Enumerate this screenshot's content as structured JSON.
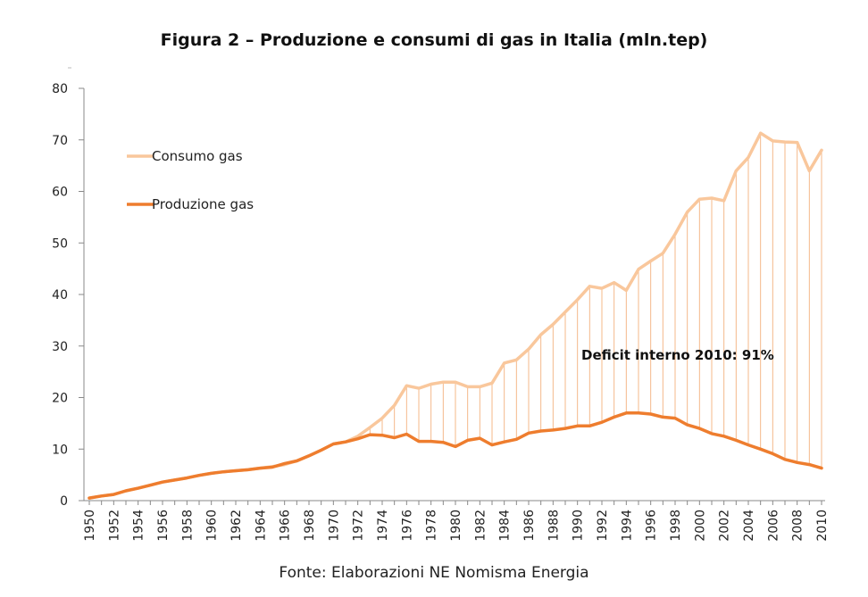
{
  "chart_data": {
    "type": "line",
    "title": "Figura 2 – Produzione e consumi di gas in Italia (mln.tep)",
    "xlabel": "",
    "ylabel": "",
    "ylim": [
      0,
      80
    ],
    "yticks": [
      0,
      10,
      20,
      30,
      40,
      50,
      60,
      70,
      80
    ],
    "x": [
      1950,
      1951,
      1952,
      1953,
      1954,
      1955,
      1956,
      1957,
      1958,
      1959,
      1960,
      1961,
      1962,
      1963,
      1964,
      1965,
      1966,
      1967,
      1968,
      1969,
      1970,
      1971,
      1972,
      1973,
      1974,
      1975,
      1976,
      1977,
      1978,
      1979,
      1980,
      1981,
      1982,
      1983,
      1984,
      1985,
      1986,
      1987,
      1988,
      1989,
      1990,
      1991,
      1992,
      1993,
      1994,
      1995,
      1996,
      1997,
      1998,
      1999,
      2000,
      2001,
      2002,
      2003,
      2004,
      2005,
      2006,
      2007,
      2008,
      2009,
      2010
    ],
    "xtick_labels": [
      "1950",
      "1952",
      "1954",
      "1956",
      "1958",
      "1960",
      "1962",
      "1964",
      "1966",
      "1968",
      "1970",
      "1972",
      "1974",
      "1976",
      "1978",
      "1980",
      "1982",
      "1984",
      "1986",
      "1988",
      "1990",
      "1992",
      "1994",
      "1996",
      "1998",
      "2000",
      "2002",
      "2004",
      "2006",
      "2008",
      "2010"
    ],
    "grid": false,
    "legend_placement": "top-left",
    "series": [
      {
        "name": "Consumo gas",
        "color": "#f9c79c",
        "values": [
          0.5,
          0.9,
          1.2,
          1.9,
          2.4,
          3.0,
          3.6,
          4.0,
          4.4,
          4.9,
          5.3,
          5.6,
          5.8,
          6.0,
          6.3,
          6.6,
          7.0,
          7.7,
          8.7,
          9.8,
          11.0,
          11.4,
          12.5,
          14.2,
          16.0,
          18.5,
          22.3,
          21.8,
          22.6,
          23.0,
          23.0,
          22.1,
          22.1,
          22.8,
          26.7,
          27.3,
          29.4,
          32.2,
          34.2,
          36.6,
          39.0,
          41.6,
          41.2,
          42.3,
          40.8,
          44.9,
          46.5,
          48.0,
          51.7,
          56.0,
          58.5,
          58.7,
          58.2,
          64.0,
          66.6,
          71.3,
          69.8,
          69.6,
          69.5,
          64.0,
          68.0
        ]
      },
      {
        "name": "Produzione gas",
        "color": "#ee7d2e",
        "values": [
          0.5,
          0.9,
          1.2,
          1.9,
          2.4,
          3.0,
          3.6,
          4.0,
          4.4,
          4.9,
          5.3,
          5.6,
          5.8,
          6.0,
          6.3,
          6.5,
          7.2,
          7.7,
          8.7,
          9.8,
          11.0,
          11.4,
          12.0,
          12.8,
          12.7,
          12.2,
          12.9,
          11.5,
          11.5,
          11.3,
          10.5,
          11.7,
          12.1,
          10.8,
          11.4,
          11.9,
          13.1,
          13.5,
          13.7,
          14.0,
          14.5,
          14.5,
          15.2,
          16.2,
          17.0,
          17.0,
          16.8,
          16.2,
          16.0,
          14.7,
          14.0,
          13.0,
          12.5,
          11.7,
          10.8,
          10.0,
          9.1,
          8.0,
          7.4,
          7.0,
          6.3
        ]
      }
    ],
    "fill_between": {
      "color": "#f4b98a",
      "style": "vertical-lines"
    },
    "annotations": [
      {
        "text": "Deficit interno 2010: 91%"
      }
    ]
  },
  "source_note": "Fonte: Elaborazioni NE Nomisma Energia"
}
